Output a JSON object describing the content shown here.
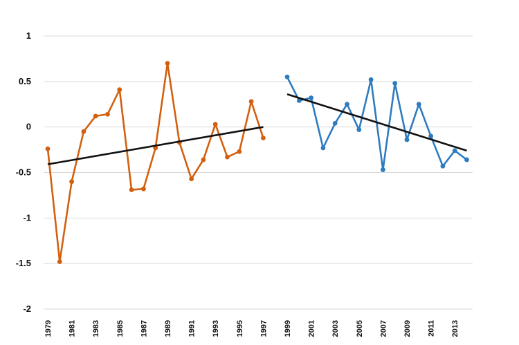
{
  "chart_data": {
    "type": "line",
    "title": "",
    "xlabel": "",
    "ylabel": "",
    "ylim": [
      -2,
      1
    ],
    "xlim": [
      1979,
      2014
    ],
    "y_ticks": [
      "1",
      "0.5",
      "0",
      "-0.5",
      "-1",
      "-1.5",
      "-2"
    ],
    "x_ticks": [
      "1979",
      "1981",
      "1983",
      "1985",
      "1987",
      "1989",
      "1991",
      "1993",
      "1995",
      "1997",
      "1999",
      "2001",
      "2003",
      "2005",
      "2007",
      "2009",
      "2011",
      "2013"
    ],
    "grid": "horizontal",
    "legend": "none",
    "series": [
      {
        "color": "#d2600f",
        "x": [
          1979,
          1980,
          1981,
          1982,
          1983,
          1984,
          1985,
          1986,
          1987,
          1988,
          1989,
          1990,
          1991,
          1992,
          1993,
          1994,
          1995,
          1996,
          1997
        ],
        "y": [
          -0.24,
          -1.48,
          -0.6,
          -0.05,
          0.12,
          0.14,
          0.41,
          -0.69,
          -0.68,
          -0.23,
          0.7,
          -0.17,
          -0.57,
          -0.36,
          0.03,
          -0.33,
          -0.27,
          0.28,
          -0.12
        ]
      },
      {
        "color": "#2e7bbf",
        "x": [
          1999,
          2000,
          2001,
          2002,
          2003,
          2004,
          2005,
          2006,
          2007,
          2008,
          2009,
          2010,
          2011,
          2012,
          2013,
          2014
        ],
        "y": [
          0.55,
          0.29,
          0.32,
          -0.23,
          0.04,
          0.25,
          -0.03,
          0.52,
          -0.47,
          0.48,
          -0.14,
          0.25,
          -0.1,
          -0.43,
          -0.26,
          -0.36
        ]
      }
    ],
    "trendlines": [
      {
        "color": "#111111",
        "x": [
          1979,
          1997
        ],
        "y": [
          -0.41,
          0.0
        ]
      },
      {
        "color": "#111111",
        "x": [
          1999,
          2014
        ],
        "y": [
          0.36,
          -0.26
        ]
      }
    ]
  }
}
